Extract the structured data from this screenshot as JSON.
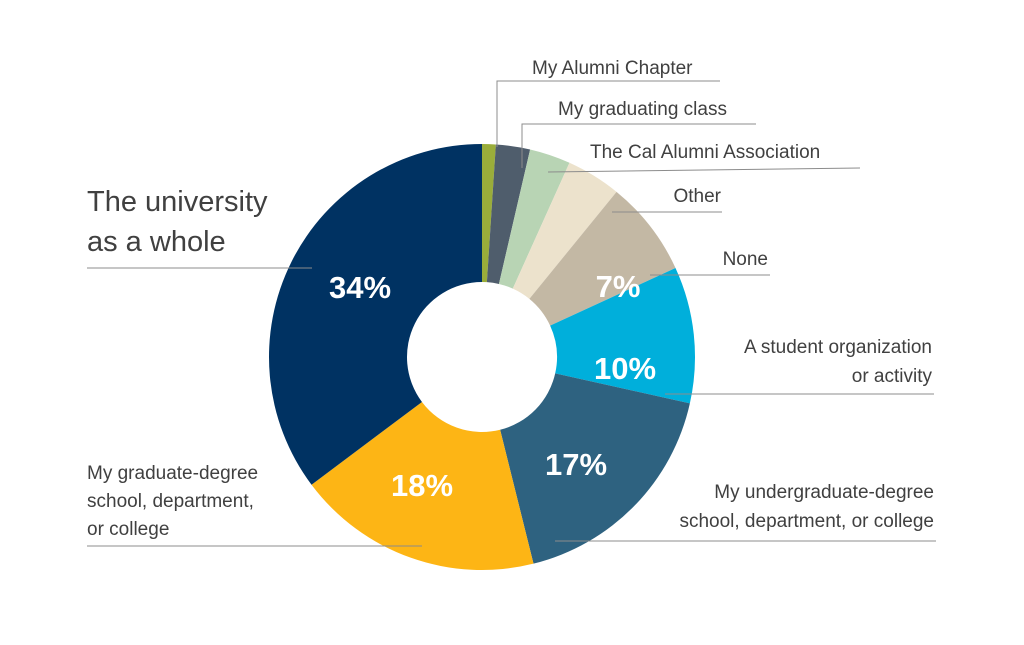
{
  "chart_data": {
    "type": "pie",
    "donut": true,
    "slices": [
      {
        "label": "My Alumni Chapter",
        "value": 1,
        "color": "#9aad3a",
        "shown_label": ""
      },
      {
        "label": "My graduating class",
        "value": 2.5,
        "color": "#4f5d6c",
        "shown_label": ""
      },
      {
        "label": "The Cal Alumni Association",
        "value": 3,
        "color": "#b8d4b4",
        "shown_label": ""
      },
      {
        "label": "Other",
        "value": 4,
        "color": "#ece2cc",
        "shown_label": ""
      },
      {
        "label": "None",
        "value": 7,
        "color": "#c3b8a4",
        "shown_label": "7%"
      },
      {
        "label": "A student organization or activity",
        "label_lines": [
          "A student organization",
          "or activity"
        ],
        "value": 10,
        "color": "#00afdb",
        "shown_label": "10%"
      },
      {
        "label": "My undergraduate-degree school, department, or college",
        "label_lines": [
          "My undergraduate-degree",
          "school, department, or college"
        ],
        "value": 17,
        "color": "#2e6280",
        "shown_label": "17%"
      },
      {
        "label": "My graduate-degree school, department, or college",
        "label_lines": [
          "My graduate-degree",
          "school, department,",
          "or college"
        ],
        "value": 18,
        "color": "#fdb515",
        "shown_label": "18%"
      },
      {
        "label": "The university as a whole",
        "label_lines": [
          "The university",
          "as a whole"
        ],
        "value": 34,
        "color": "#003262",
        "shown_label": "34%"
      }
    ],
    "legend": "none"
  }
}
